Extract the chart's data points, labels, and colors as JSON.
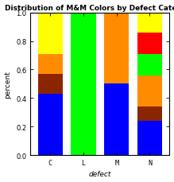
{
  "title": "Distribution of M&M Colors by Defect Category",
  "xlabel": "defect",
  "ylabel": "percent",
  "categories": [
    "C",
    "L",
    "M",
    "N"
  ],
  "hex_colors": [
    "#0000FF",
    "#8B2500",
    "#FF8C00",
    "#00FF00",
    "#FF0000",
    "#FFFF00"
  ],
  "segments": {
    "C": [
      0.43,
      0.14,
      0.14,
      0.0,
      0.0,
      0.29
    ],
    "L": [
      0.0,
      0.0,
      0.0,
      1.0,
      0.0,
      0.0
    ],
    "M": [
      0.5,
      0.0,
      0.5,
      0.0,
      0.0,
      0.0
    ],
    "N": [
      0.24,
      0.1,
      0.22,
      0.15,
      0.15,
      0.14
    ]
  },
  "ylim": [
    0.0,
    1.0
  ],
  "yticks": [
    0.0,
    0.2,
    0.4,
    0.6,
    0.8,
    1.0
  ],
  "bar_width": 0.75,
  "figsize": [
    2.19,
    2.3
  ],
  "dpi": 100,
  "bg_color": "#FFFFFF",
  "title_fontsize": 6.5,
  "axis_fontsize": 6.5,
  "tick_fontsize": 6
}
